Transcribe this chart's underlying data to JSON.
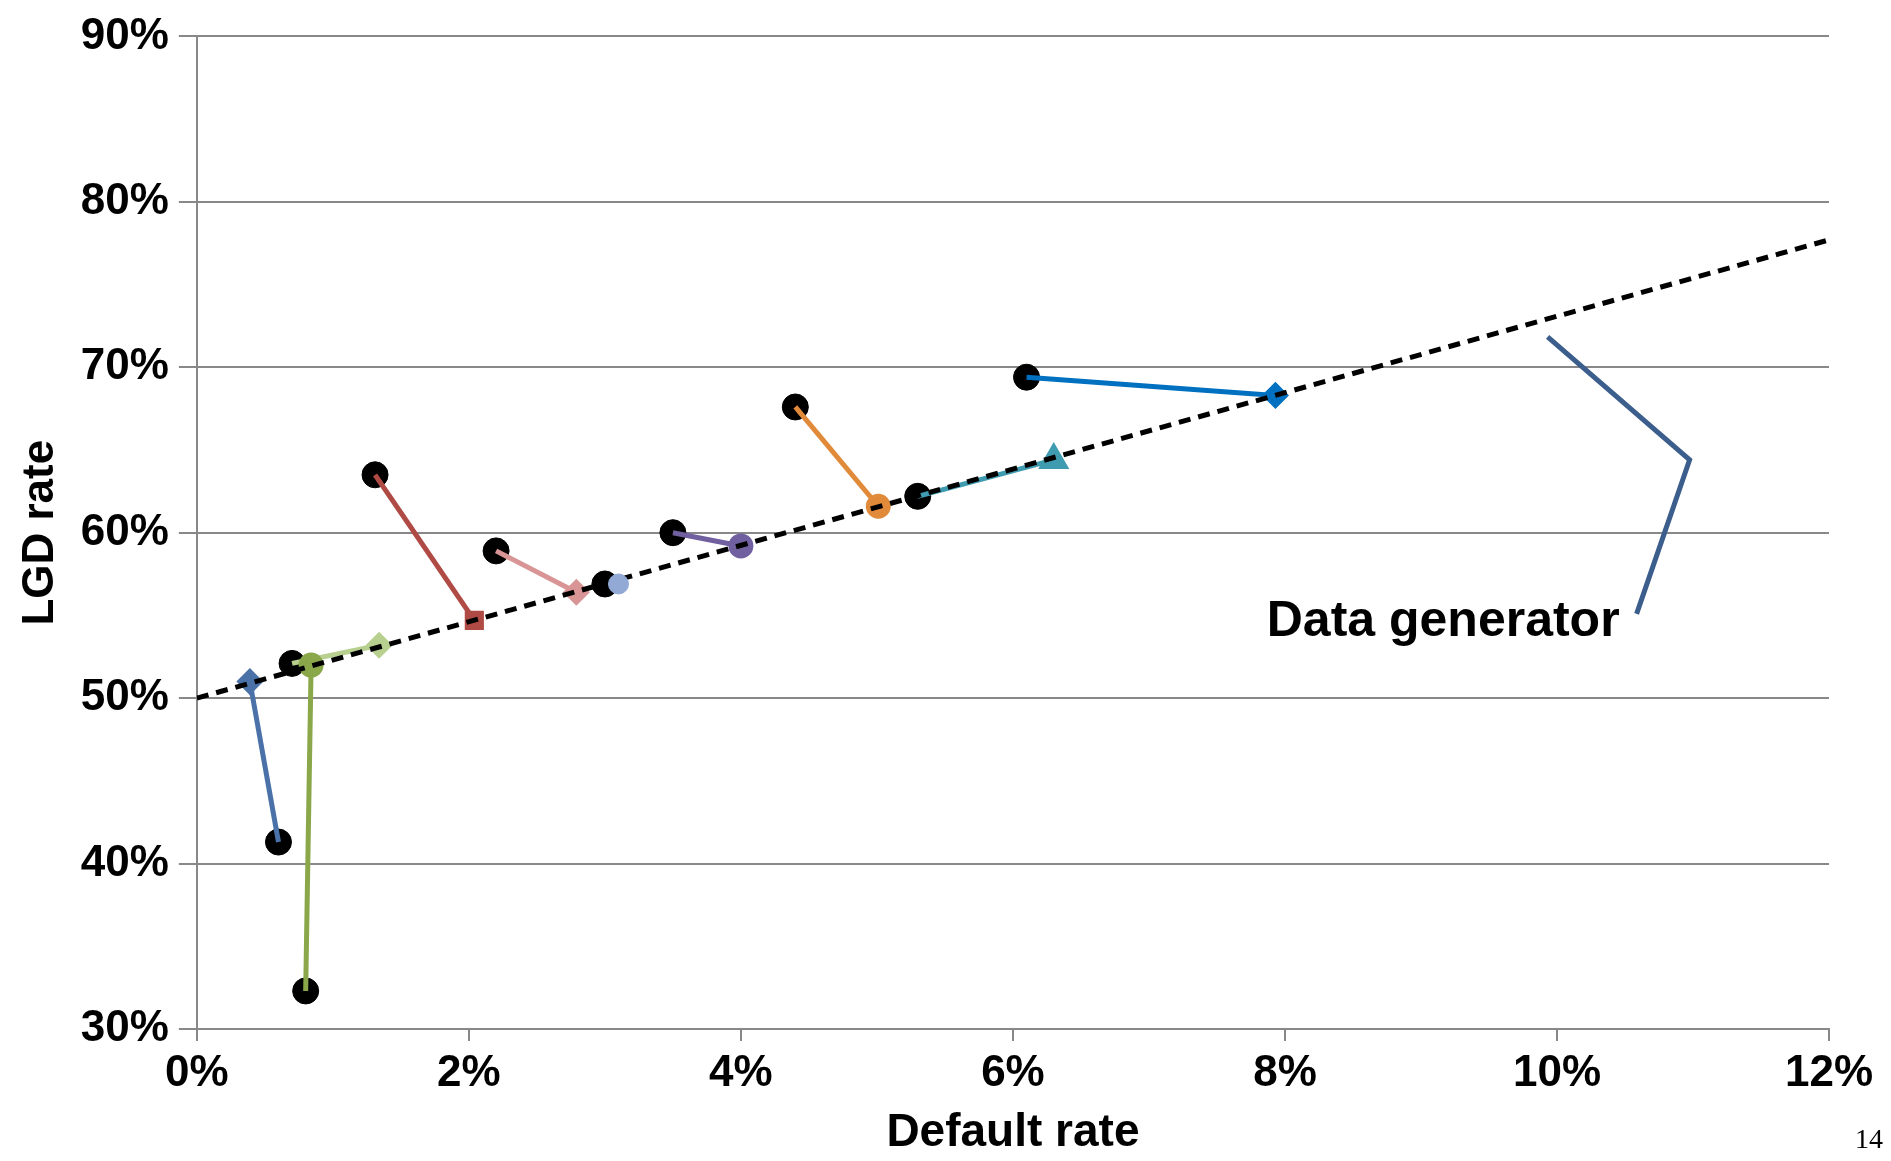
{
  "chart_data": {
    "type": "scatter",
    "xlabel": "Default rate",
    "ylabel": "LGD rate",
    "xlim": [
      0,
      12
    ],
    "ylim": [
      30,
      90
    ],
    "xticks": [
      {
        "value": 0,
        "label": "0%"
      },
      {
        "value": 2,
        "label": "2%"
      },
      {
        "value": 4,
        "label": "4%"
      },
      {
        "value": 6,
        "label": "6%"
      },
      {
        "value": 8,
        "label": "8%"
      },
      {
        "value": 10,
        "label": "10%"
      },
      {
        "value": 12,
        "label": "12%"
      }
    ],
    "yticks": [
      {
        "value": 30,
        "label": "30%"
      },
      {
        "value": 40,
        "label": "40%"
      },
      {
        "value": 50,
        "label": "50%"
      },
      {
        "value": 60,
        "label": "60%"
      },
      {
        "value": 70,
        "label": "70%"
      },
      {
        "value": 80,
        "label": "80%"
      },
      {
        "value": 90,
        "label": "90%"
      }
    ],
    "grid": "y",
    "legend": false,
    "series": [
      {
        "type": "line",
        "color": "#000000",
        "line_style": "dashed",
        "marker": "none",
        "x": [
          0,
          12
        ],
        "values": [
          50,
          77.7
        ]
      },
      {
        "type": "line",
        "color": "#4a72a8",
        "marker": "diamond",
        "x": [
          0.39,
          0.6
        ],
        "values": [
          51.0,
          41.3
        ]
      },
      {
        "type": "line",
        "color": "#8aa84a",
        "marker": "circle",
        "x": [
          0.84,
          0.8
        ],
        "values": [
          52.0,
          32.3
        ]
      },
      {
        "type": "line",
        "color": "#b8d08f",
        "marker": "diamond",
        "x": [
          1.34,
          0.7
        ],
        "values": [
          53.2,
          52.1
        ]
      },
      {
        "type": "line",
        "color": "#b04a45",
        "marker": "square",
        "x": [
          2.04,
          1.31
        ],
        "values": [
          54.7,
          63.5
        ]
      },
      {
        "type": "line",
        "color": "#d99595",
        "marker": "diamond",
        "x": [
          2.79,
          2.2
        ],
        "values": [
          56.4,
          58.9
        ]
      },
      {
        "type": "scatter",
        "color": "#92a9d6",
        "marker": "circle",
        "x": [
          3.1
        ],
        "values": [
          56.9
        ]
      },
      {
        "type": "line",
        "color": "#7060a0",
        "marker": "circle",
        "x": [
          4.0,
          3.5
        ],
        "values": [
          59.2,
          60.0
        ]
      },
      {
        "type": "line",
        "color": "#e08a3a",
        "marker": "circle",
        "x": [
          5.01,
          4.4
        ],
        "values": [
          61.6,
          67.6
        ]
      },
      {
        "type": "line",
        "color": "#3f9bb0",
        "marker": "triangle",
        "x": [
          6.3,
          5.3
        ],
        "values": [
          64.4,
          62.2
        ]
      },
      {
        "type": "line",
        "color": "#0070c0",
        "marker": "diamond",
        "x": [
          7.93,
          6.1
        ],
        "values": [
          68.3,
          69.4
        ]
      },
      {
        "type": "scatter",
        "color": "#000000",
        "marker": "circle",
        "x": [
          0.6,
          0.8,
          0.7,
          1.31,
          2.2,
          3.0,
          3.5,
          4.4,
          5.3,
          6.1
        ],
        "values": [
          41.3,
          32.3,
          52.1,
          63.5,
          58.9,
          56.9,
          60.0,
          67.6,
          62.2,
          69.4
        ]
      }
    ],
    "annotations": [
      "Data generator",
      "14"
    ]
  }
}
